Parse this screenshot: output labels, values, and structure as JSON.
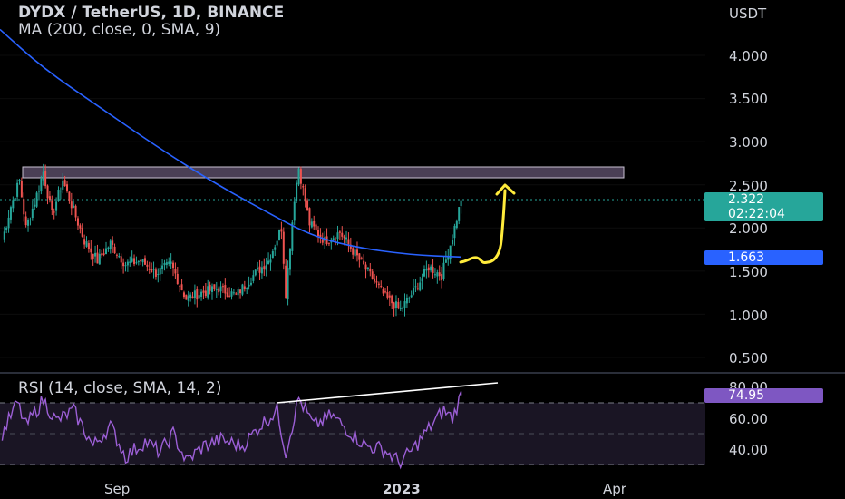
{
  "header": {
    "title": "DYDX / TetherUS, 1D, BINANCE",
    "ma_label": "MA (200, close, 0, SMA, 9)"
  },
  "price_axis": {
    "currency": "USDT",
    "ticks": [
      "4.000",
      "3.500",
      "3.000",
      "2.500",
      "2.000",
      "1.500",
      "1.000",
      "0.500"
    ]
  },
  "badges": {
    "last_price": "2.322",
    "countdown": "02:22:04",
    "ma_value": "1.663",
    "rsi_value": "74.95"
  },
  "rsi": {
    "label": "RSI (14, close, SMA, 14, 2)",
    "ticks": [
      "80.00",
      "60.00",
      "40.00"
    ]
  },
  "time_axis": {
    "labels": [
      "Sep",
      "2023",
      "Apr"
    ]
  },
  "colors": {
    "up": "#26a69a",
    "down": "#ef5350",
    "ma": "#2962ff",
    "rsi": "#9c5fd6",
    "rsi_badge": "#7e57c2",
    "ma_badge": "#2962ff",
    "price_badge": "#26a69a",
    "zone": "#4a3f55",
    "arrow": "#ffeb3b"
  },
  "chart_data": {
    "type": "candlestick",
    "title": "DYDX / TetherUS, 1D, BINANCE",
    "y_unit": "USDT",
    "ylim": [
      0.25,
      4.3
    ],
    "x_range": [
      "2022-06-30",
      "2023-04-20"
    ],
    "last_close": 2.322,
    "indicators": {
      "ma": {
        "name": "MA (200, close, 0, SMA, 9)",
        "last": 1.663
      },
      "rsi": {
        "name": "RSI (14, close, SMA, 14, 2)",
        "last": 74.95,
        "ylim": [
          20,
          90
        ],
        "bands": [
          70,
          50,
          30
        ]
      }
    },
    "resistance_zone": [
      2.6,
      2.72
    ],
    "price_series": [
      [
        "2022-07-01",
        1.85
      ],
      [
        "2022-07-05",
        2.25
      ],
      [
        "2022-07-09",
        2.55
      ],
      [
        "2022-07-12",
        2.0
      ],
      [
        "2022-07-16",
        2.3
      ],
      [
        "2022-07-20",
        2.65
      ],
      [
        "2022-07-24",
        2.15
      ],
      [
        "2022-07-29",
        2.55
      ],
      [
        "2022-08-03",
        2.2
      ],
      [
        "2022-08-08",
        1.85
      ],
      [
        "2022-08-14",
        1.62
      ],
      [
        "2022-08-20",
        1.82
      ],
      [
        "2022-08-27",
        1.58
      ],
      [
        "2022-09-03",
        1.62
      ],
      [
        "2022-09-10",
        1.48
      ],
      [
        "2022-09-17",
        1.58
      ],
      [
        "2022-09-24",
        1.18
      ],
      [
        "2022-10-01",
        1.25
      ],
      [
        "2022-10-09",
        1.3
      ],
      [
        "2022-10-17",
        1.22
      ],
      [
        "2022-10-25",
        1.45
      ],
      [
        "2022-11-01",
        1.62
      ],
      [
        "2022-11-07",
        2.0
      ],
      [
        "2022-11-09",
        1.25
      ],
      [
        "2022-11-13",
        2.35
      ],
      [
        "2022-11-15",
        2.7
      ],
      [
        "2022-11-20",
        2.05
      ],
      [
        "2022-11-27",
        1.85
      ],
      [
        "2022-12-04",
        1.95
      ],
      [
        "2022-12-11",
        1.7
      ],
      [
        "2022-12-18",
        1.45
      ],
      [
        "2022-12-25",
        1.2
      ],
      [
        "2023-01-01",
        1.05
      ],
      [
        "2023-01-08",
        1.3
      ],
      [
        "2023-01-14",
        1.55
      ],
      [
        "2023-01-20",
        1.45
      ],
      [
        "2023-01-25",
        1.9
      ],
      [
        "2023-01-29",
        2.32
      ]
    ],
    "ma_series": [
      [
        "2022-06-30",
        4.3
      ],
      [
        "2022-07-20",
        3.85
      ],
      [
        "2022-08-15",
        3.4
      ],
      [
        "2022-09-10",
        2.95
      ],
      [
        "2022-10-05",
        2.55
      ],
      [
        "2022-10-30",
        2.2
      ],
      [
        "2022-11-20",
        1.92
      ],
      [
        "2022-12-10",
        1.78
      ],
      [
        "2023-01-05",
        1.69
      ],
      [
        "2023-01-29",
        1.663
      ]
    ],
    "rsi_series": [
      [
        "2022-07-01",
        50
      ],
      [
        "2022-07-08",
        70
      ],
      [
        "2022-07-12",
        55
      ],
      [
        "2022-07-20",
        72
      ],
      [
        "2022-07-26",
        58
      ],
      [
        "2022-08-03",
        65
      ],
      [
        "2022-08-12",
        42
      ],
      [
        "2022-08-20",
        55
      ],
      [
        "2022-08-27",
        35
      ],
      [
        "2022-09-05",
        45
      ],
      [
        "2022-09-12",
        38
      ],
      [
        "2022-09-18",
        50
      ],
      [
        "2022-09-24",
        32
      ],
      [
        "2022-10-02",
        42
      ],
      [
        "2022-10-10",
        46
      ],
      [
        "2022-10-20",
        42
      ],
      [
        "2022-10-28",
        55
      ],
      [
        "2022-11-05",
        65
      ],
      [
        "2022-11-09",
        38
      ],
      [
        "2022-11-15",
        73
      ],
      [
        "2022-11-22",
        55
      ],
      [
        "2022-11-30",
        62
      ],
      [
        "2022-12-08",
        52
      ],
      [
        "2022-12-16",
        42
      ],
      [
        "2022-12-24",
        40
      ],
      [
        "2023-01-01",
        31
      ],
      [
        "2023-01-08",
        42
      ],
      [
        "2023-01-15",
        55
      ],
      [
        "2023-01-21",
        65
      ],
      [
        "2023-01-25",
        60
      ],
      [
        "2023-01-29",
        75
      ]
    ]
  }
}
